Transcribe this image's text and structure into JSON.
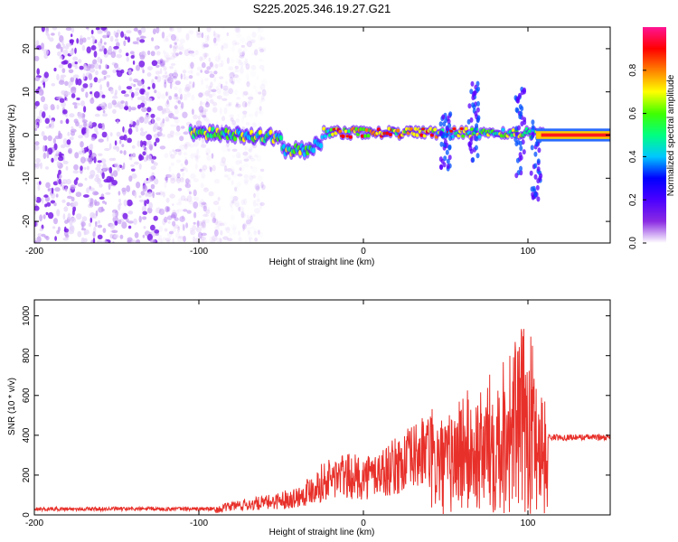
{
  "title": "S225.2025.346.19.27.G21",
  "chart_data": [
    {
      "type": "heatmap",
      "name": "spectrogram",
      "xlabel": "Height of straight line (km)",
      "ylabel": "Frequency (Hz)",
      "xlim": [
        -200,
        150
      ],
      "ylim": [
        -25,
        25
      ],
      "xticks": [
        -200,
        -100,
        0,
        100
      ],
      "xtick_labels": [
        "-200",
        "-100",
        "0",
        "100"
      ],
      "yticks": [
        -20,
        -10,
        0,
        10,
        20
      ],
      "ytick_labels": [
        "-20",
        "-10",
        "0",
        "10",
        "20"
      ],
      "colorbar": {
        "label": "Normalized spectral amplitude",
        "range": [
          0,
          1
        ],
        "ticks": [
          0.0,
          0.2,
          0.4,
          0.6,
          0.8
        ],
        "tick_labels": [
          "0.0",
          "0.2",
          "0.4",
          "0.6",
          "0.8"
        ],
        "colors": [
          "#ffffff",
          "#8a2be2",
          "#4b00ff",
          "#0000ff",
          "#00c8ff",
          "#00ff80",
          "#40ff00",
          "#ffff00",
          "#ff8000",
          "#ff0000",
          "#ff1493"
        ]
      },
      "features": {
        "noise_region_x": [
          -200,
          -85
        ],
        "main_band_frequency_hz": 0,
        "band_dip_x": [
          -45,
          -35
        ],
        "band_dip_frequency_hz": -4,
        "bursts": [
          {
            "x": 50,
            "freq_range": [
              -8,
              5
            ]
          },
          {
            "x": 67,
            "freq_range": [
              -6,
              12
            ]
          },
          {
            "x": 95,
            "freq_range": [
              -10,
              11
            ]
          },
          {
            "x": 105,
            "freq_range": [
              -15,
              3
            ]
          }
        ]
      }
    },
    {
      "type": "line",
      "name": "snr",
      "xlabel": "Height of straight line (km)",
      "ylabel": "SNR (10 * v/v)",
      "xlim": [
        -200,
        150
      ],
      "ylim": [
        0,
        1080
      ],
      "xticks": [
        -200,
        -100,
        0,
        100
      ],
      "xtick_labels": [
        "-200",
        "-100",
        "0",
        "100"
      ],
      "yticks": [
        0,
        200,
        400,
        600,
        800,
        1000
      ],
      "ytick_labels": [
        "0",
        "200",
        "400",
        "600",
        "800",
        "1000"
      ],
      "color": "#e8302a",
      "series": [
        {
          "name": "SNR",
          "x": [
            -200,
            -90,
            -80,
            -60,
            -40,
            -25,
            -15,
            0,
            15,
            30,
            40,
            50,
            60,
            70,
            80,
            90,
            100,
            108,
            112,
            150
          ],
          "values": [
            25,
            30,
            60,
            80,
            120,
            220,
            260,
            250,
            300,
            380,
            440,
            380,
            520,
            480,
            620,
            700,
            780,
            560,
            400,
            400
          ]
        }
      ]
    }
  ]
}
